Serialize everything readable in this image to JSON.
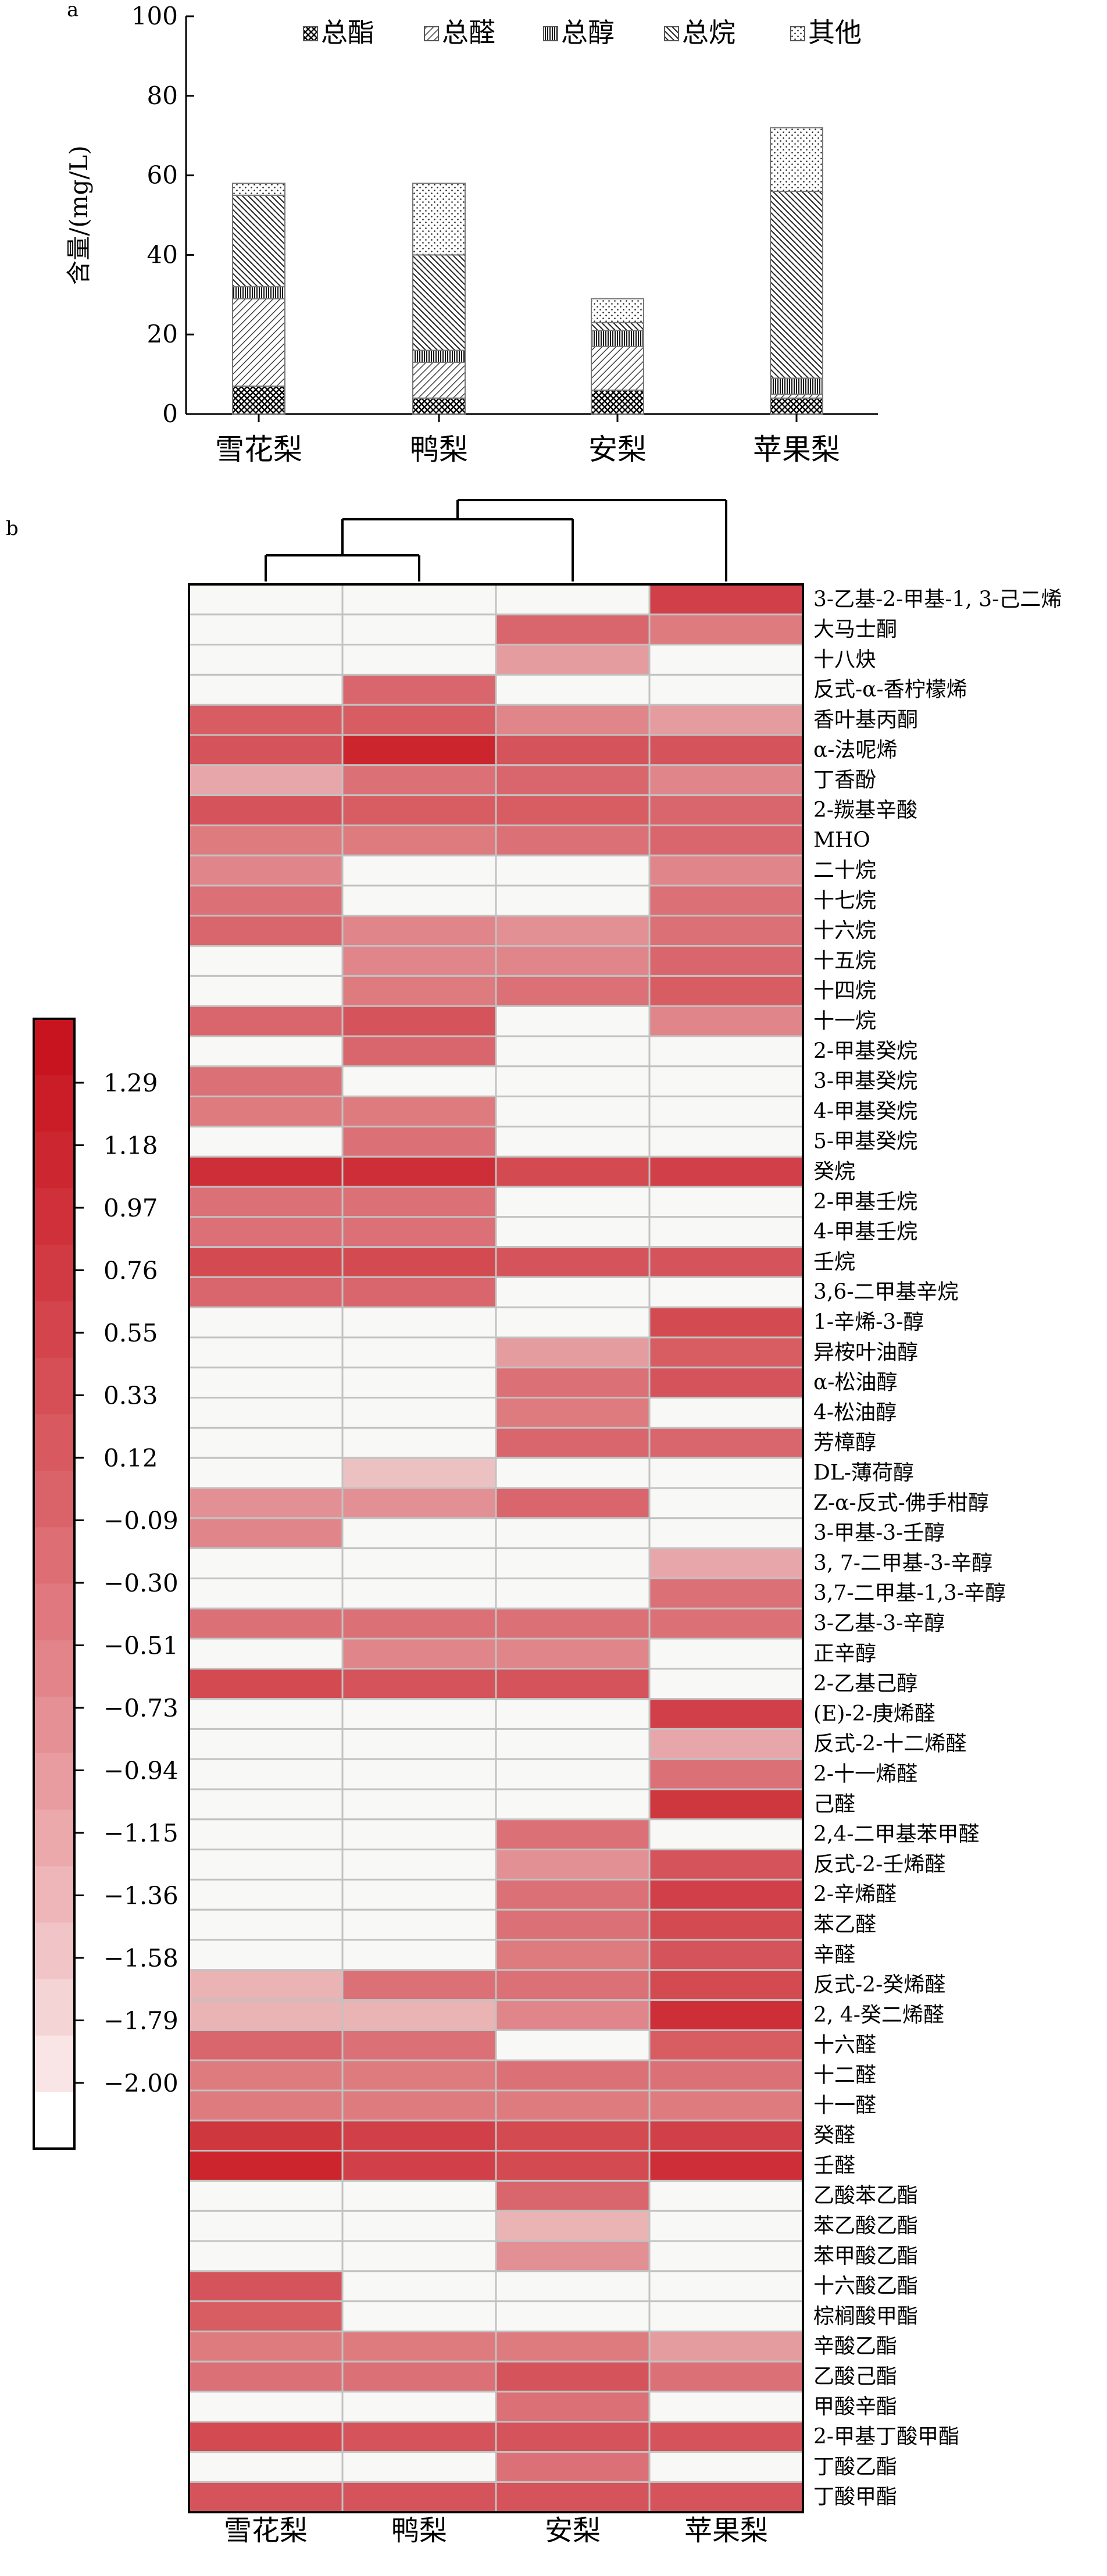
{
  "panel_labels": {
    "a": "a",
    "b": "b"
  },
  "chart_data": [
    {
      "type": "bar",
      "stacked": true,
      "ylabel": "含量/(mg/L)",
      "ylim": [
        0,
        100
      ],
      "yticks": [
        0,
        20,
        40,
        60,
        80,
        100
      ],
      "categories": [
        "雪花梨",
        "鸭梨",
        "安梨",
        "苹果梨"
      ],
      "legend_position": "top",
      "series": [
        {
          "name": "总酯",
          "pattern": "crosshatch",
          "values": [
            7,
            4,
            6,
            4
          ]
        },
        {
          "name": "总醛",
          "pattern": "diag-right",
          "values": [
            22,
            9,
            11,
            1
          ]
        },
        {
          "name": "总醇",
          "pattern": "vertical",
          "values": [
            3,
            3,
            4,
            4
          ]
        },
        {
          "name": "总烷",
          "pattern": "diag-left",
          "values": [
            23,
            24,
            2,
            47
          ]
        },
        {
          "name": "其他",
          "pattern": "dots",
          "values": [
            3,
            18,
            6,
            16
          ]
        }
      ]
    },
    {
      "type": "heatmap",
      "columns": [
        "雪花梨",
        "鸭梨",
        "安梨",
        "苹果梨"
      ],
      "dendrogram": true,
      "colorbar": {
        "ticks": [
          "1.29",
          "1.18",
          "0.97",
          "0.76",
          "0.55",
          "0.33",
          "0.12",
          "−0.09",
          "−0.30",
          "−0.51",
          "−0.73",
          "−0.94",
          "−1.15",
          "−1.36",
          "−1.58",
          "−1.79",
          "−2.00"
        ],
        "min_color": "#ffffff",
        "max_color": "#c8141e",
        "steps": 20
      },
      "rows": [
        {
          "name": "3-乙基-2-甲基-1, 3-己二烯",
          "values": [
            0,
            0,
            0,
            15
          ]
        },
        {
          "name": "大马士酮",
          "values": [
            0,
            0,
            11,
            9
          ]
        },
        {
          "name": "十八炔",
          "values": [
            0,
            0,
            6,
            0
          ]
        },
        {
          "name": "反式-α-香柠檬烯",
          "values": [
            0,
            11,
            0,
            0
          ]
        },
        {
          "name": "香叶基丙酮",
          "values": [
            12,
            12,
            8,
            6
          ]
        },
        {
          "name": "α-法呢烯",
          "values": [
            13,
            18,
            13,
            13
          ]
        },
        {
          "name": "丁香酚",
          "values": [
            5,
            10,
            11,
            8
          ]
        },
        {
          "name": "2-羰基辛酸",
          "values": [
            13,
            12,
            12,
            11
          ]
        },
        {
          "name": "MHO",
          "values": [
            9,
            9,
            10,
            11
          ]
        },
        {
          "name": "二十烷",
          "values": [
            8,
            0,
            0,
            8
          ]
        },
        {
          "name": "十七烷",
          "values": [
            10,
            0,
            0,
            10
          ]
        },
        {
          "name": "十六烷",
          "values": [
            11,
            8,
            7,
            10
          ]
        },
        {
          "name": "十五烷",
          "values": [
            0,
            8,
            8,
            11
          ]
        },
        {
          "name": "十四烷",
          "values": [
            0,
            9,
            10,
            12
          ]
        },
        {
          "name": "十一烷",
          "values": [
            11,
            13,
            0,
            8
          ]
        },
        {
          "name": "2-甲基癸烷",
          "values": [
            0,
            11,
            0,
            0
          ]
        },
        {
          "name": "3-甲基癸烷",
          "values": [
            10,
            0,
            0,
            0
          ]
        },
        {
          "name": "4-甲基癸烷",
          "values": [
            9,
            9,
            0,
            0
          ]
        },
        {
          "name": "5-甲基癸烷",
          "values": [
            0,
            10,
            0,
            0
          ]
        },
        {
          "name": "癸烷",
          "values": [
            17,
            17,
            14,
            15
          ]
        },
        {
          "name": "2-甲基壬烷",
          "values": [
            10,
            10,
            0,
            0
          ]
        },
        {
          "name": "4-甲基壬烷",
          "values": [
            10,
            10,
            0,
            0
          ]
        },
        {
          "name": "壬烷",
          "values": [
            14,
            14,
            13,
            13
          ]
        },
        {
          "name": "3,6-二甲基辛烷",
          "values": [
            11,
            11,
            0,
            0
          ]
        },
        {
          "name": "1-辛烯-3-醇",
          "values": [
            0,
            0,
            0,
            14
          ]
        },
        {
          "name": "异桉叶油醇",
          "values": [
            0,
            0,
            6,
            12
          ]
        },
        {
          "name": "α-松油醇",
          "values": [
            0,
            0,
            10,
            13
          ]
        },
        {
          "name": "4-松油醇",
          "values": [
            0,
            0,
            9,
            0
          ]
        },
        {
          "name": "芳樟醇",
          "values": [
            0,
            0,
            11,
            11
          ]
        },
        {
          "name": "DL-薄荷醇",
          "values": [
            0,
            3,
            0,
            0
          ]
        },
        {
          "name": "Z-α-反式-佛手柑醇",
          "values": [
            7,
            7,
            11,
            0
          ]
        },
        {
          "name": "3-甲基-3-壬醇",
          "values": [
            8,
            0,
            0,
            0
          ]
        },
        {
          "name": "3, 7-二甲基-3-辛醇",
          "values": [
            0,
            0,
            0,
            5
          ]
        },
        {
          "name": "3,7-二甲基-1,3-辛醇",
          "values": [
            0,
            0,
            0,
            10
          ]
        },
        {
          "name": "3-乙基-3-辛醇",
          "values": [
            10,
            10,
            10,
            10
          ]
        },
        {
          "name": "正辛醇",
          "values": [
            0,
            8,
            8,
            0
          ]
        },
        {
          "name": "2-乙基己醇",
          "values": [
            14,
            13,
            13,
            0
          ]
        },
        {
          "name": "(E)-2-庚烯醛",
          "values": [
            0,
            0,
            0,
            15
          ]
        },
        {
          "name": "反式-2-十二烯醛",
          "values": [
            0,
            0,
            0,
            5
          ]
        },
        {
          "name": "2-十一烯醛",
          "values": [
            0,
            0,
            0,
            10
          ]
        },
        {
          "name": "己醛",
          "values": [
            0,
            0,
            0,
            16
          ]
        },
        {
          "name": "2,4-二甲基苯甲醛",
          "values": [
            0,
            0,
            10,
            0
          ]
        },
        {
          "name": "反式-2-壬烯醛",
          "values": [
            0,
            0,
            7,
            13
          ]
        },
        {
          "name": "2-辛烯醛",
          "values": [
            0,
            0,
            10,
            15
          ]
        },
        {
          "name": "苯乙醛",
          "values": [
            0,
            0,
            10,
            14
          ]
        },
        {
          "name": "辛醛",
          "values": [
            0,
            0,
            9,
            13
          ]
        },
        {
          "name": "反式-2-癸烯醛",
          "values": [
            4,
            10,
            10,
            14
          ]
        },
        {
          "name": "2, 4-癸二烯醛",
          "values": [
            4,
            4,
            8,
            17
          ]
        },
        {
          "name": "十六醛",
          "values": [
            11,
            10,
            0,
            12
          ]
        },
        {
          "name": "十二醛",
          "values": [
            9,
            9,
            10,
            10
          ]
        },
        {
          "name": "十一醛",
          "values": [
            9,
            9,
            9,
            9
          ]
        },
        {
          "name": "癸醛",
          "values": [
            16,
            15,
            14,
            15
          ]
        },
        {
          "name": "壬醛",
          "values": [
            18,
            15,
            14,
            17
          ]
        },
        {
          "name": "乙酸苯乙酯",
          "values": [
            0,
            0,
            11,
            0
          ]
        },
        {
          "name": "苯乙酸乙酯",
          "values": [
            0,
            0,
            4,
            0
          ]
        },
        {
          "name": "苯甲酸乙酯",
          "values": [
            0,
            0,
            7,
            0
          ]
        },
        {
          "name": "十六酸乙酯",
          "values": [
            13,
            0,
            0,
            0
          ]
        },
        {
          "name": "棕榈酸甲酯",
          "values": [
            12,
            0,
            0,
            0
          ]
        },
        {
          "name": "辛酸乙酯",
          "values": [
            9,
            9,
            9,
            6
          ]
        },
        {
          "name": "乙酸己酯",
          "values": [
            10,
            10,
            13,
            10
          ]
        },
        {
          "name": "甲酸辛酯",
          "values": [
            0,
            0,
            10,
            0
          ]
        },
        {
          "name": "2-甲基丁酸甲酯",
          "values": [
            14,
            13,
            13,
            13
          ]
        },
        {
          "name": "丁酸乙酯",
          "values": [
            0,
            0,
            10,
            0
          ]
        },
        {
          "name": "丁酸甲酯",
          "values": [
            13,
            13,
            13,
            13
          ]
        }
      ]
    }
  ]
}
